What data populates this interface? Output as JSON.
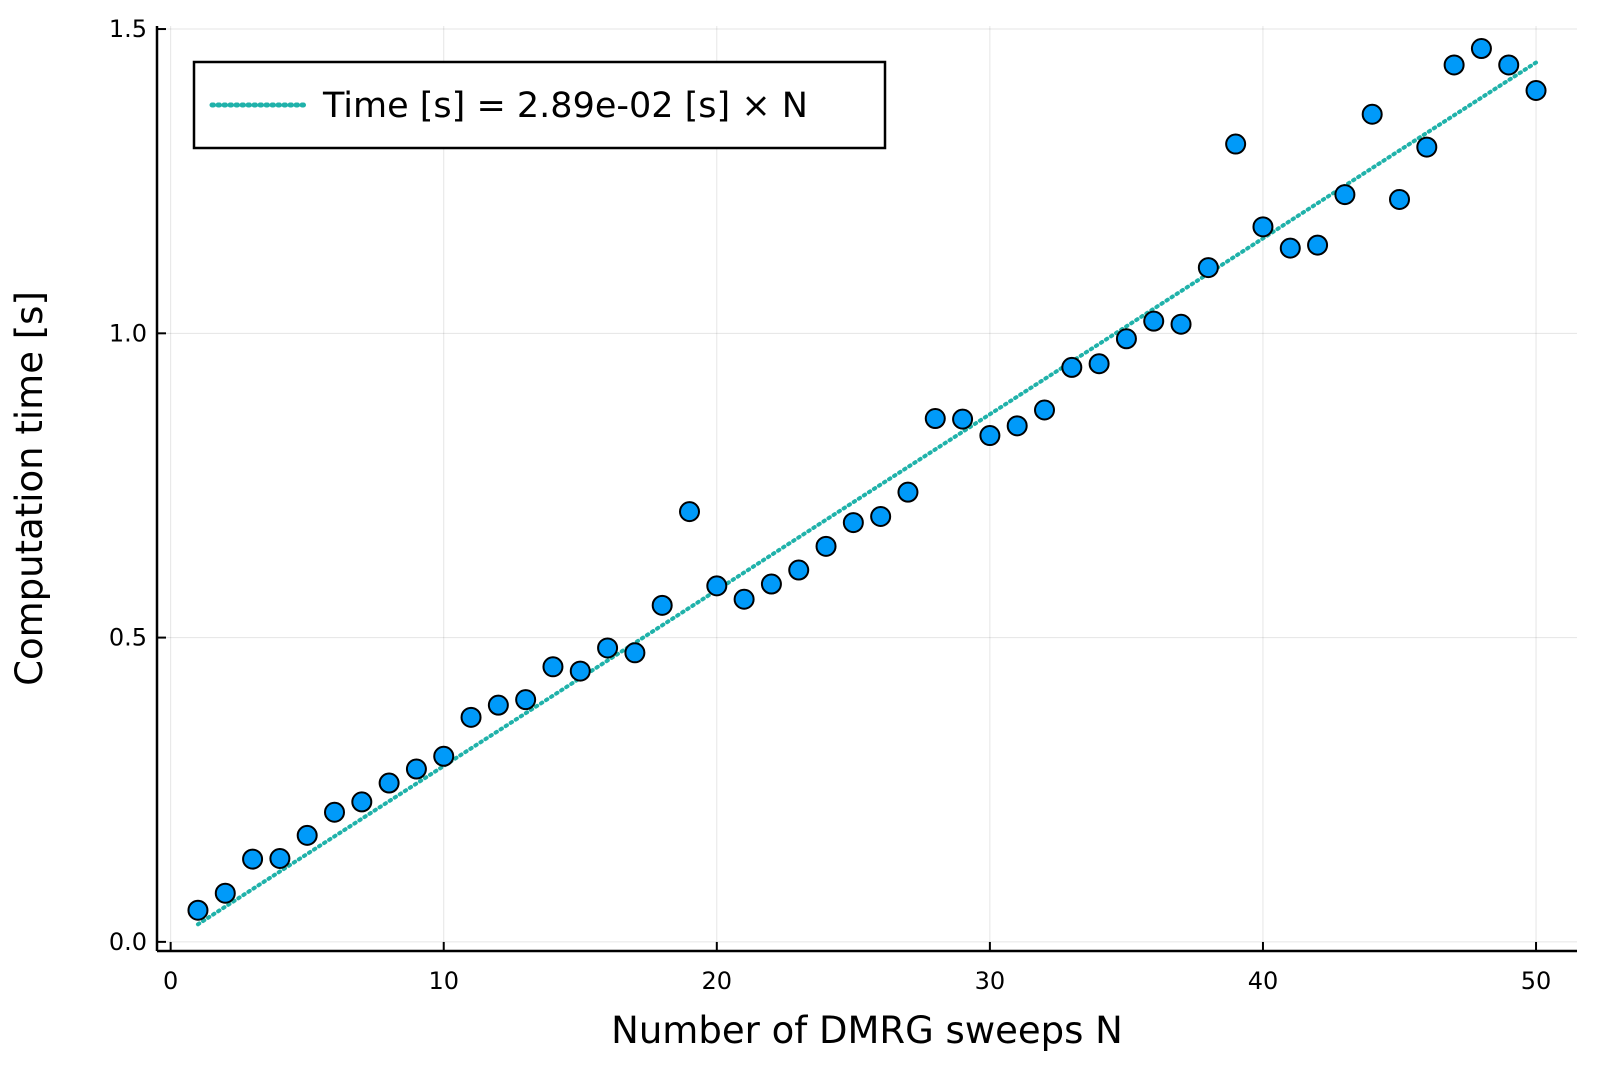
{
  "chart_data": {
    "type": "scatter",
    "xlabel": "Number of DMRG sweeps N",
    "ylabel": "Computation time [s]",
    "xlim": [
      -0.5,
      51.5
    ],
    "ylim": [
      -0.015,
      1.505
    ],
    "xticks": [
      0,
      10,
      20,
      30,
      40,
      50
    ],
    "xtick_labels": [
      "0",
      "10",
      "20",
      "30",
      "40",
      "50"
    ],
    "yticks": [
      0.0,
      0.5,
      1.0,
      1.5
    ],
    "ytick_labels": [
      "0.0",
      "0.5",
      "1.0",
      "1.5"
    ],
    "grid": true,
    "legend_position": "top-left",
    "series": [
      {
        "name": "Time [s] = 2.89e-02 [s] × N",
        "kind": "line",
        "style": "dotted",
        "color": "#20b2aa",
        "x": [
          1,
          50
        ],
        "y": [
          0.0289,
          1.445
        ]
      },
      {
        "kind": "scatter",
        "color": "#009af9",
        "x": [
          1,
          2,
          3,
          4,
          5,
          6,
          7,
          8,
          9,
          10,
          11,
          12,
          13,
          14,
          15,
          16,
          17,
          18,
          19,
          20,
          21,
          22,
          23,
          24,
          25,
          26,
          27,
          28,
          29,
          30,
          31,
          32,
          33,
          34,
          35,
          36,
          37,
          38,
          39,
          40,
          41,
          42,
          43,
          44,
          45,
          46,
          47,
          48,
          49,
          50
        ],
        "y": [
          0.052,
          0.08,
          0.136,
          0.137,
          0.175,
          0.213,
          0.23,
          0.261,
          0.284,
          0.305,
          0.369,
          0.389,
          0.398,
          0.452,
          0.445,
          0.483,
          0.475,
          0.553,
          0.707,
          0.585,
          0.563,
          0.588,
          0.611,
          0.65,
          0.689,
          0.699,
          0.739,
          0.86,
          0.859,
          0.832,
          0.848,
          0.874,
          0.944,
          0.95,
          0.991,
          1.02,
          1.015,
          1.108,
          1.311,
          1.175,
          1.14,
          1.145,
          1.228,
          1.36,
          1.22,
          1.306,
          1.441,
          1.468,
          1.441,
          1.399
        ]
      }
    ]
  }
}
